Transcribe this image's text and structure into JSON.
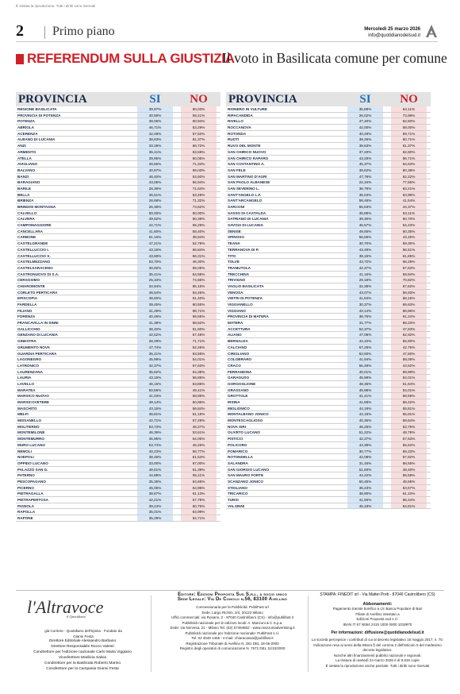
{
  "header": {
    "copyright": "È vietata la riproduzione. Tutti i diritti sono riservati",
    "page_number": "2",
    "section": "Primo piano",
    "date": "Mercoledì 25 marzo 2026",
    "email": "info@quotidianodelsud.it"
  },
  "topic": {
    "kicker": "REFERENDUM SULLA GIUSTIZIA",
    "subtitle": "Il voto in Basilicata comune per comune"
  },
  "table_headers": {
    "province": "PROVINCIA",
    "yes": "SI",
    "no": "NO"
  },
  "left_rows": [
    {
      "name": "REGIONE BASILICATA",
      "si": "39,97%",
      "no": "60,03%"
    },
    {
      "name": "PROVINCIA DI POTENZA",
      "si": "40,59%",
      "no": "59,41%"
    },
    {
      "name": "POTENZA",
      "si": "39,06%",
      "no": "60,94%"
    },
    {
      "name": "ABRIOLA",
      "si": "46,71%",
      "no": "53,29%"
    },
    {
      "name": "ACERENZA",
      "si": "42,48%",
      "no": "57,52%"
    },
    {
      "name": "ALBANO DI LUCANIA",
      "si": "38,63%",
      "no": "61,37%"
    },
    {
      "name": "ANZI",
      "si": "33,28%",
      "no": "66,72%"
    },
    {
      "name": "ARMENTO",
      "si": "36,41%",
      "no": "63,59%"
    },
    {
      "name": "ATELLA",
      "si": "39,95%",
      "no": "60,05%"
    },
    {
      "name": "AVIGLIANO",
      "si": "28,66%",
      "no": "71,34%"
    },
    {
      "name": "BALVANO",
      "si": "40,97%",
      "no": "59,03%"
    },
    {
      "name": "BANZI",
      "si": "46,40%",
      "no": "53,60%"
    },
    {
      "name": "BARAGIANO",
      "si": "43,06%",
      "no": "56,94%"
    },
    {
      "name": "BARILE",
      "si": "28,36%",
      "no": "71,64%"
    },
    {
      "name": "BELLA",
      "si": "36,51%",
      "no": "63,49%"
    },
    {
      "name": "BRIENZA",
      "si": "28,68%",
      "no": "71,32%"
    },
    {
      "name": "BRINDISI MONTAGNA",
      "si": "26,38%",
      "no": "73,62%"
    },
    {
      "name": "CALVELLO",
      "si": "50,00%",
      "no": "50,00%"
    },
    {
      "name": "CALVERA",
      "si": "49,62%",
      "no": "50,38%"
    },
    {
      "name": "CAMPOMAGGIORE",
      "si": "44,71%",
      "no": "55,29%"
    },
    {
      "name": "CANCELLARA",
      "si": "41,60%",
      "no": "58,40%"
    },
    {
      "name": "CARBONE",
      "si": "61,16%",
      "no": "38,84%"
    },
    {
      "name": "CASTELGRANDE",
      "si": "47,21%",
      "no": "52,79%"
    },
    {
      "name": "CASTELLUCCIO I.",
      "si": "43,16%",
      "no": "56,84%"
    },
    {
      "name": "CASTELLUCCIO S.",
      "si": "43,69%",
      "no": "56,31%"
    },
    {
      "name": "CASTELMEZZANO",
      "si": "53,70%",
      "no": "46,30%"
    },
    {
      "name": "CASTELSARACENO",
      "si": "30,92%",
      "no": "69,08%"
    },
    {
      "name": "CASTRONUOVO DI S.A.",
      "si": "35,41%",
      "no": "64,59%"
    },
    {
      "name": "CERSOSIMO",
      "si": "25,34%",
      "no": "74,66%"
    },
    {
      "name": "CHIAROMONTE",
      "si": "34,84%",
      "no": "65,16%"
    },
    {
      "name": "CORLETO PERTICARA",
      "si": "46,54%",
      "no": "53,46%"
    },
    {
      "name": "EPISCOPIA",
      "si": "48,60%",
      "no": "51,40%"
    },
    {
      "name": "FARDELLA",
      "si": "39,45%",
      "no": "60,55%"
    },
    {
      "name": "FILIANO",
      "si": "31,29%",
      "no": "68,71%"
    },
    {
      "name": "FORENZA",
      "si": "40,45%",
      "no": "59,55%"
    },
    {
      "name": "FRANCAVILLA IN SINNI",
      "si": "41,38%",
      "no": "58,62%"
    },
    {
      "name": "GALLICCHIO",
      "si": "38,40%",
      "no": "61,60%"
    },
    {
      "name": "GENZANO DI LUCANIA",
      "si": "42,52%",
      "no": "57,48%"
    },
    {
      "name": "GINESTRA",
      "si": "28,29%",
      "no": "71,71%"
    },
    {
      "name": "GRUMENTO NOVA",
      "si": "47,74%",
      "no": "52,26%"
    },
    {
      "name": "GUARDIA PERTICARA",
      "si": "36,41%",
      "no": "63,59%"
    },
    {
      "name": "LAGONEGRO",
      "si": "45,99%",
      "no": "54,01%"
    },
    {
      "name": "LATRONICO",
      "si": "32,37%",
      "no": "67,63%"
    },
    {
      "name": "LAURENZANA",
      "si": "35,62%",
      "no": "64,38%"
    },
    {
      "name": "LAURIA",
      "si": "43,15%",
      "no": "56,85%"
    },
    {
      "name": "LAVELLO",
      "si": "46,15%",
      "no": "53,85%"
    },
    {
      "name": "MARATEA",
      "si": "50,59%",
      "no": "49,41%"
    },
    {
      "name": "MARSICO NUOVO",
      "si": "41,04%",
      "no": "58,96%"
    },
    {
      "name": "MARSICOVETERE",
      "si": "49,14%",
      "no": "50,86%"
    },
    {
      "name": "MASCHITO",
      "si": "43,16%",
      "no": "56,84%"
    },
    {
      "name": "MELFI",
      "si": "38,81%",
      "no": "61,19%"
    },
    {
      "name": "MISSANELLO",
      "si": "42,71%",
      "no": "57,29%"
    },
    {
      "name": "MOLITERNO",
      "si": "53,73%",
      "no": "46,27%"
    },
    {
      "name": "MONTEMILONE",
      "si": "46,39%",
      "no": "53,61%"
    },
    {
      "name": "MONTEMURRO",
      "si": "45,95%",
      "no": "54,05%"
    },
    {
      "name": "MURO LUCANO",
      "si": "53,74%",
      "no": "46,26%"
    },
    {
      "name": "NEMOLI",
      "si": "40,23%",
      "no": "59,77%"
    },
    {
      "name": "NOEPOLI",
      "si": "38,46%",
      "no": "61,54%"
    },
    {
      "name": "OPPIDO LUCANO",
      "si": "33,00%",
      "no": "67,00%"
    },
    {
      "name": "PALAZZO SAN G.",
      "si": "48,61%",
      "no": "51,39%"
    },
    {
      "name": "PATERNO",
      "si": "44,89%",
      "no": "55,11%"
    },
    {
      "name": "PESCOPAGANO",
      "si": "35,35%",
      "no": "64,65%"
    },
    {
      "name": "PICERNO",
      "si": "45,05%",
      "no": "54,95%"
    },
    {
      "name": "PIETRAGALLA",
      "si": "38,87%",
      "no": "61,13%"
    },
    {
      "name": "PIETRAPERTOSA",
      "si": "42,21%",
      "no": "57,79%"
    },
    {
      "name": "PIGNOLA",
      "si": "39,24%",
      "no": "60,76%"
    },
    {
      "name": "RAPOLLA",
      "si": "35,01%",
      "no": "64,99%"
    },
    {
      "name": "RAPONE",
      "si": "35,29%",
      "no": "64,71%"
    }
  ],
  "right_rows": [
    {
      "name": "RIONERO IN VULTURE",
      "si": "35,89%",
      "no": "64,11%"
    },
    {
      "name": "RIPACANDIDA",
      "si": "26,02%",
      "no": "73,98%"
    },
    {
      "name": "RIVELLO",
      "si": "47,40%",
      "no": "52,60%"
    },
    {
      "name": "ROCCANOVA",
      "si": "42,00%",
      "no": "58,00%"
    },
    {
      "name": "ROTONDA",
      "si": "40,29%",
      "no": "59,71%"
    },
    {
      "name": "RUOTI",
      "si": "39,29%",
      "no": "60,71%"
    },
    {
      "name": "RUVO DEL MONTE",
      "si": "38,63%",
      "no": "61,37%"
    },
    {
      "name": "SAN CHIRICO NUOVO",
      "si": "37,20%",
      "no": "62,80%"
    },
    {
      "name": "SAN CHIRICO RAPARO",
      "si": "43,29%",
      "no": "56,71%"
    },
    {
      "name": "SAN COSTANTINO A.",
      "si": "45,37%",
      "no": "54,63%"
    },
    {
      "name": "SAN FELE",
      "si": "39,62%",
      "no": "60,38%"
    },
    {
      "name": "SAN MARTINO D'AGRI",
      "si": "47,78%",
      "no": "52,22%"
    },
    {
      "name": "SAN PAOLO ALBANESE",
      "si": "22,34%",
      "no": "77,66%"
    },
    {
      "name": "SAN SEVERINO L.",
      "si": "36,79%",
      "no": "63,21%"
    },
    {
      "name": "SANT'ANGELO L.F.",
      "si": "36,04%",
      "no": "63,96%"
    },
    {
      "name": "SANT'ARCANGELO",
      "si": "58,46%",
      "no": "41,54%"
    },
    {
      "name": "SARCONI",
      "si": "55,63%",
      "no": "44,37%"
    },
    {
      "name": "SASSO DI CASTALDA",
      "si": "36,89%",
      "no": "63,11%"
    },
    {
      "name": "SATRIANO DI LUCANIA",
      "si": "39,30%",
      "no": "60,70%"
    },
    {
      "name": "SAVOIA DI LUCANIA",
      "si": "45,57%",
      "no": "54,43%"
    },
    {
      "name": "SENISE",
      "si": "49,65%",
      "no": "50,35%"
    },
    {
      "name": "SPINOSO",
      "si": "56,55%",
      "no": "43,45%"
    },
    {
      "name": "TEANA",
      "si": "30,70%",
      "no": "69,30%"
    },
    {
      "name": "TERRANOVA DI P.",
      "si": "43,49%",
      "no": "56,51%"
    },
    {
      "name": "TITO",
      "si": "38,15%",
      "no": "61,85%"
    },
    {
      "name": "TOLVE",
      "si": "43,72%",
      "no": "56,28%"
    },
    {
      "name": "TRAMUTOLA",
      "si": "42,37%",
      "no": "57,63%"
    },
    {
      "name": "TRECCHINA",
      "si": "41,16%",
      "no": "58,84%"
    },
    {
      "name": "TRIVIGNO",
      "si": "29,18%",
      "no": "70,82%"
    },
    {
      "name": "VAGLIO BASILICATA",
      "si": "32,38%",
      "no": "67,62%"
    },
    {
      "name": "VENOSA",
      "si": "43,07%",
      "no": "56,93%"
    },
    {
      "name": "VIETRI DI POTENZA",
      "si": "41,84%",
      "no": "58,16%"
    },
    {
      "name": "VIGGIANELLO",
      "si": "30,37%",
      "no": "69,63%"
    },
    {
      "name": "VIGGIANO",
      "si": "43,14%",
      "no": "56,86%"
    },
    {
      "name": "PROVINCIA DI MATERA",
      "si": "38,76%",
      "no": "61,24%"
    },
    {
      "name": "MATERA",
      "si": "31,77%",
      "no": "68,23%"
    },
    {
      "name": "ACCETTURA",
      "si": "52,37%",
      "no": "47,63%"
    },
    {
      "name": "ALIANO",
      "si": "47,08%",
      "no": "52,92%"
    },
    {
      "name": "BERNALDA",
      "si": "44,10%",
      "no": "55,90%"
    },
    {
      "name": "CALCIANO",
      "si": "57,25%",
      "no": "42,75%"
    },
    {
      "name": "CIRIGLIANO",
      "si": "52,50%",
      "no": "47,50%"
    },
    {
      "name": "COLOBRARO",
      "si": "41,94%",
      "no": "58,06%"
    },
    {
      "name": "CRACO",
      "si": "56,48%",
      "no": "43,52%"
    },
    {
      "name": "FERRANDINA",
      "si": "40,01%",
      "no": "59,99%"
    },
    {
      "name": "GARAGUSO",
      "si": "45,99%",
      "no": "54,01%"
    },
    {
      "name": "GORGOGLIONE",
      "si": "48,36%",
      "no": "51,64%"
    },
    {
      "name": "GRASSANO",
      "si": "45,99%",
      "no": "54,01%"
    },
    {
      "name": "GROTTOLE",
      "si": "41,41%",
      "no": "58,59%"
    },
    {
      "name": "IRSINA",
      "si": "41,58%",
      "no": "58,42%"
    },
    {
      "name": "MIGLIONICO",
      "si": "44,19%",
      "no": "55,81%"
    },
    {
      "name": "MONTALBANO JONICO",
      "si": "44,19%",
      "no": "55,81%"
    },
    {
      "name": "MONTESCAGLIOSO",
      "si": "40,36%",
      "no": "59,64%"
    },
    {
      "name": "NOVA SIRI",
      "si": "46,25%",
      "no": "53,75%"
    },
    {
      "name": "OLIVETO LUCANO",
      "si": "51,22%",
      "no": "48,78%"
    },
    {
      "name": "PISTICCI",
      "si": "42,37%",
      "no": "57,63%"
    },
    {
      "name": "POLICORO",
      "si": "44,38%",
      "no": "55,62%"
    },
    {
      "name": "POMARICO",
      "si": "30,77%",
      "no": "69,23%"
    },
    {
      "name": "ROTONDELLA",
      "si": "42,08%",
      "no": "57,92%"
    },
    {
      "name": "SALANDRA",
      "si": "31,45%",
      "no": "68,55%"
    },
    {
      "name": "SAN GIORGIO LUCANO",
      "si": "51,60%",
      "no": "48,40%"
    },
    {
      "name": "SAN MAURO FORTE",
      "si": "44,42%",
      "no": "55,58%"
    },
    {
      "name": "SCANZANO JONICO",
      "si": "50,45%",
      "no": "49,55%"
    },
    {
      "name": "STIGLIANO",
      "si": "36,43%",
      "no": "63,57%"
    },
    {
      "name": "TRICARICO",
      "si": "38,90%",
      "no": "61,10%"
    },
    {
      "name": "TURSI",
      "si": "41,56%",
      "no": "58,44%"
    },
    {
      "name": "VALSINNI",
      "si": "45,19%",
      "no": "54,81%"
    }
  ],
  "footer": {
    "logo": "l'Altravoce",
    "logo_sub": "il Quotidiano",
    "logo_line": "già Corriere - Quotidiano dell'Irpinia · Fondato da Gianni Festa",
    "staff": [
      "Direttore Editoriale Alessandro Barbano",
      "Direttore Responsabile Rocco Valenti",
      "Condirettore per l'edizione nazionale Carlo Maria Viggiano",
      "Vicedirettore Marilicia Salvia",
      "Condirettore per la Basilicata Roberto Marino",
      "Condirettore per la Campania Gianni Festa"
    ],
    "editor_line1": "Editore: Edizioni Proposta Sud S.r.l. a socio unico",
    "editor_line2": "Sede Legale: Via De Concilii n.56, 83100 Avellino",
    "editor_small": [
      "Concessionaria per la Pubblicità: PubliFast srl",
      "Sede: Largo Richini, 2/4, 20122 Milano",
      "Uffici commerciali: via Rosario, 2 - 87040 Castrolibero (CS) - info@publifast.it",
      "Pubblicità nazionale per le edizioni locali: A. Manzoni & C S.p.a.",
      "Sede: via Nervesa, 21 - Milano Tel. (02) 57494802 - www.manzoniadvertising.it",
      "Pubblicità nazionale per l'edizione nazionale: PubliFast s.r.l.",
      "Tel. 02 4548 1465 - e-mail: chiaracassa@publifast.it",
      "Registrazione Tribunale di Avellino N. 381 DEL 18-05-2000",
      "Registro degli operatori di comunicazione N. 7671 DEL 11/10/2000"
    ],
    "stampa": "STAMPA: FINEDIT srl - Via Mattei Preti - 87040 Castrolibero (CS)",
    "abbonamenti_title": "Abbonamenti:",
    "abbonamenti_small": [
      "Pagamento tramite bonifico a c/c Banca Popolare di Bari",
      "Filiale di Avellino intestato a",
      "Edizioni Proposta sud s.r.l.",
      "IBAN IT 67 N054 2415 1000 0000 1018970"
    ],
    "info_line": "Per informazioni: diffusione@quotidianodelsud.it",
    "legal_small": [
      "La società percepisce i contributi di cui al decreto legislativo 15 maggio 2017, n. 70.",
      "Indicazione resa ai sensi della lettera f) del comma 2 dell'articolo 5 del medesimo decreto legislativo.",
      "Nonché altri finanziamenti pubblici nazionali e regionali.",
      "La tiratura di martedì 24 marzo 2026 è di 8.815 copie",
      "È vietata la riproduzione anche parziale. Tutti i diritti sono riservati"
    ]
  }
}
